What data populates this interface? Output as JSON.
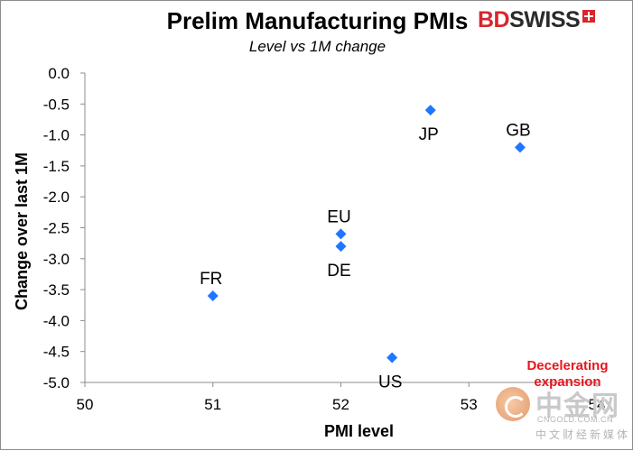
{
  "brand": {
    "part1": "BD",
    "part2": "SWISS"
  },
  "chart_data": {
    "type": "scatter",
    "title": "Prelim Manufacturing PMIs",
    "subtitle": "Level vs 1M change",
    "xlabel": "PMI level",
    "ylabel": "Change over last 1M",
    "xlim": [
      50,
      54
    ],
    "ylim": [
      -5.0,
      0.0
    ],
    "x_ticks": [
      "50",
      "51",
      "52",
      "53",
      "54"
    ],
    "y_ticks": [
      "0.0",
      "-0.5",
      "-1.0",
      "-1.5",
      "-2.0",
      "-2.5",
      "-3.0",
      "-3.5",
      "-4.0",
      "-4.5",
      "-5.0"
    ],
    "grid": false,
    "marker_color": "#1f77ff",
    "points": [
      {
        "label": "FR",
        "x": 51.0,
        "y": -3.6,
        "label_pos": "above"
      },
      {
        "label": "EU",
        "x": 52.0,
        "y": -2.6,
        "label_pos": "above"
      },
      {
        "label": "DE",
        "x": 52.0,
        "y": -2.8,
        "label_pos": "below"
      },
      {
        "label": "US",
        "x": 52.4,
        "y": -4.6,
        "label_pos": "below"
      },
      {
        "label": "JP",
        "x": 52.7,
        "y": -0.6,
        "label_pos": "below"
      },
      {
        "label": "GB",
        "x": 53.4,
        "y": -1.2,
        "label_pos": "above"
      }
    ],
    "annotation": "Decelerating expansion"
  },
  "watermark": {
    "main": "中金网",
    "url": "CNGOLD.COM.CN",
    "tagline": "中文财经新媒体"
  }
}
